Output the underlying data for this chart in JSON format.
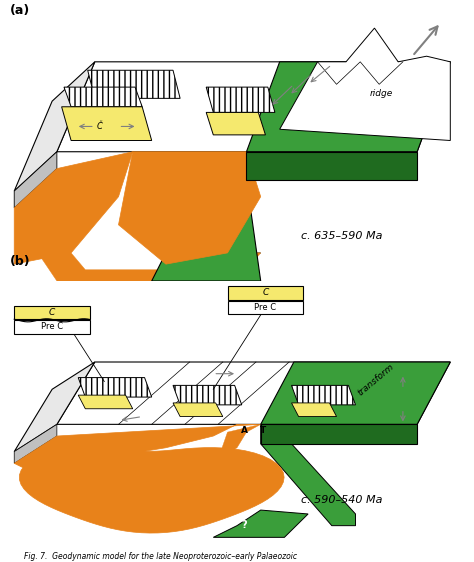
{
  "title_a": "(a)",
  "title_b": "(b)",
  "time_a": "c. 635–590 Ma",
  "time_b": "c. 590–540 Ma",
  "green": "#3a9e3a",
  "green_dark": "#1f6b1f",
  "orange": "#e8821a",
  "yellow": "#f5e96e",
  "white": "#ffffff",
  "light_gray": "#e8e8e8",
  "mid_gray": "#c0c0c0",
  "black": "#000000",
  "bg": "#ffffff"
}
